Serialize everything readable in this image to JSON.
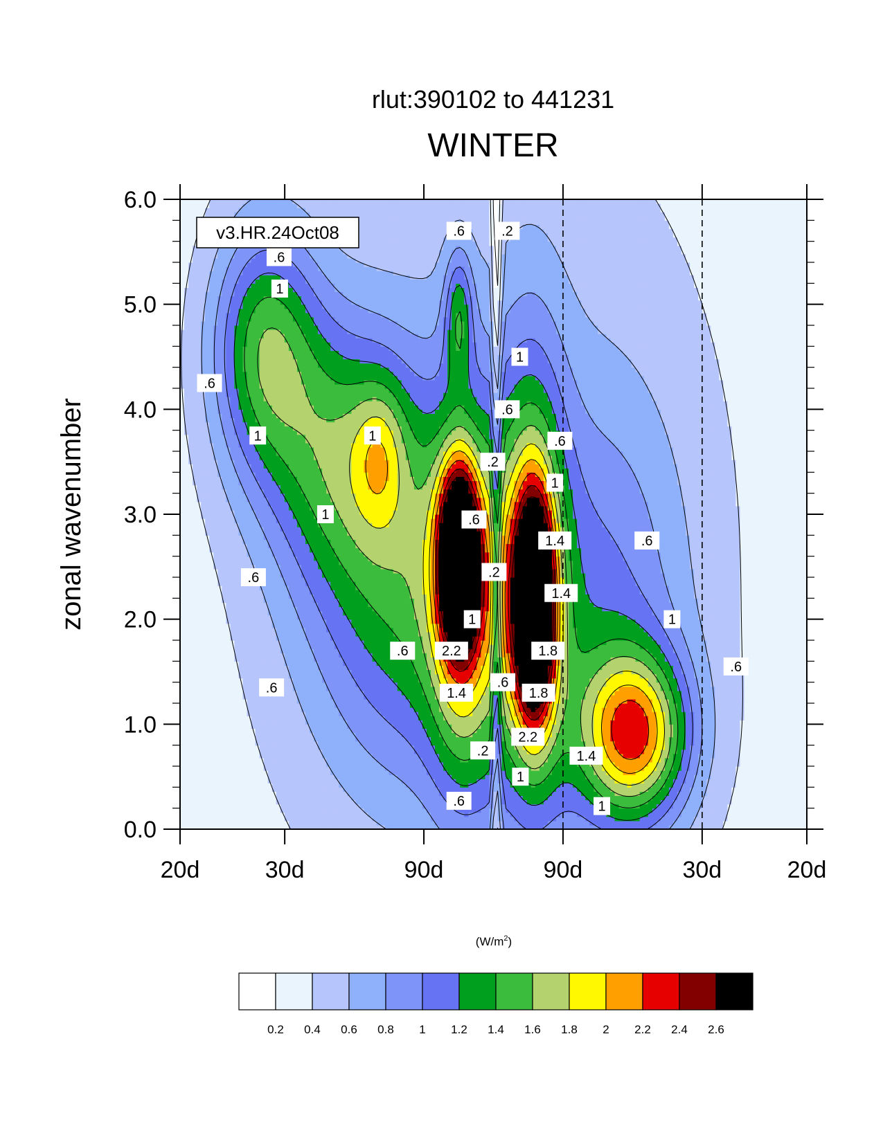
{
  "chart_data": {
    "type": "heatmap",
    "title": "WINTER",
    "subtitle": "rlut:390102 to 441231",
    "ylabel": "zonal wavenumber",
    "xlabel": "",
    "model_label": "v3.HR.24Oct08",
    "units_label": "(W/m",
    "units_sup": "2",
    "units_close": ")",
    "x_tick_labels": [
      "20d",
      "30d",
      "90d",
      "90d",
      "30d",
      "20d"
    ],
    "y_ticks": [
      0,
      1,
      2,
      3,
      4,
      5,
      6
    ],
    "y_tick_labels": [
      "0.0",
      "1.0",
      "2.0",
      "3.0",
      "4.0",
      "5.0",
      "6.0"
    ],
    "ylim": [
      0,
      6
    ],
    "x_range": [
      -0.05,
      0.05
    ],
    "x_tick_positions": [
      -0.05,
      -0.0333,
      -0.0111,
      0.0111,
      0.0333,
      0.05
    ],
    "dashed_lines_x": [
      0.0111,
      0.0333
    ],
    "levels": [
      0.2,
      0.4,
      0.6,
      0.8,
      1,
      1.2,
      1.4,
      1.6,
      1.8,
      2,
      2.2,
      2.4,
      2.6
    ],
    "level_labels": [
      "0.2",
      "0.4",
      "0.6",
      "0.8",
      "1",
      "1.2",
      "1.4",
      "1.6",
      "1.8",
      "2",
      "2.2",
      "2.4",
      "2.6"
    ],
    "colors": [
      "#ffffff",
      "#eaf4fc",
      "#b6c5fb",
      "#8fb0fb",
      "#7e94f8",
      "#6674f4",
      "#00a01e",
      "#3cbc3c",
      "#b4d26e",
      "#fff800",
      "#ffa000",
      "#e60000",
      "#820000",
      "#000000"
    ],
    "features": [
      {
        "x": -0.012,
        "y": 2.3,
        "sx": 0.012,
        "sy": 1.3,
        "amp": 0.9
      },
      {
        "x": -0.0055,
        "y": 2.6,
        "sx": 0.0022,
        "sy": 0.6,
        "amp": 2.0
      },
      {
        "x": -0.0045,
        "y": 2.0,
        "sx": 0.004,
        "sy": 1.3,
        "amp": 0.9
      },
      {
        "x": 0.0065,
        "y": 2.1,
        "sx": 0.0023,
        "sy": 0.75,
        "amp": 2.1
      },
      {
        "x": 0.006,
        "y": 2.4,
        "sx": 0.004,
        "sy": 1.6,
        "amp": 1.0
      },
      {
        "x": -0.0365,
        "y": 4.6,
        "sx": 0.006,
        "sy": 0.85,
        "amp": 1.1
      },
      {
        "x": -0.025,
        "y": 3.6,
        "sx": 0.008,
        "sy": 0.9,
        "amp": 0.8
      },
      {
        "x": -0.018,
        "y": 3.6,
        "sx": 0.003,
        "sy": 0.5,
        "amp": 0.5
      },
      {
        "x": -0.0055,
        "y": 4.9,
        "sx": 0.0016,
        "sy": 0.45,
        "amp": 0.7
      },
      {
        "x": 0.0225,
        "y": 0.9,
        "sx": 0.006,
        "sy": 0.55,
        "amp": 1.5
      },
      {
        "x": 0.0185,
        "y": 1.8,
        "sx": 0.009,
        "sy": 1.6,
        "amp": 0.55
      },
      {
        "x": 0.0,
        "y": 3.0,
        "sx": 0.03,
        "sy": 3.5,
        "amp": 0.35
      }
    ],
    "contour_labels": [
      {
        "text": ".6",
        "x": -0.0055,
        "y": 5.7
      },
      {
        "text": ".2",
        "x": 0.0022,
        "y": 5.7
      },
      {
        "text": ".6",
        "x": -0.0342,
        "y": 5.45
      },
      {
        "text": "1",
        "x": -0.0341,
        "y": 5.15
      },
      {
        "text": "1",
        "x": 0.0042,
        "y": 4.5
      },
      {
        "text": ".6",
        "x": -0.0453,
        "y": 4.25
      },
      {
        "text": ".6",
        "x": 0.0022,
        "y": 4.0
      },
      {
        "text": "1",
        "x": -0.0376,
        "y": 3.75
      },
      {
        "text": "1",
        "x": -0.0193,
        "y": 3.75
      },
      {
        "text": ".6",
        "x": 0.0106,
        "y": 3.7
      },
      {
        "text": ".2",
        "x": -0.0001,
        "y": 3.5
      },
      {
        "text": "1",
        "x": 0.0098,
        "y": 3.3
      },
      {
        "text": "1",
        "x": -0.0268,
        "y": 3.0
      },
      {
        "text": ".6",
        "x": -0.0031,
        "y": 2.95
      },
      {
        "text": ".6",
        "x": 0.0245,
        "y": 2.75
      },
      {
        "text": "1.4",
        "x": 0.0098,
        "y": 2.75
      },
      {
        "text": ".2",
        "x": 0.0001,
        "y": 2.45
      },
      {
        "text": ".6",
        "x": -0.0383,
        "y": 2.4
      },
      {
        "text": "1.4",
        "x": 0.0108,
        "y": 2.25
      },
      {
        "text": "1",
        "x": 0.0285,
        "y": 2.0
      },
      {
        "text": "1",
        "x": -0.0034,
        "y": 2.0
      },
      {
        "text": ".6",
        "x": -0.0145,
        "y": 1.7
      },
      {
        "text": "2.2",
        "x": -0.0067,
        "y": 1.7
      },
      {
        "text": "1.8",
        "x": 0.0087,
        "y": 1.7
      },
      {
        "text": ".6",
        "x": 0.0387,
        "y": 1.55
      },
      {
        "text": ".6",
        "x": -0.0354,
        "y": 1.35
      },
      {
        "text": ".6",
        "x": 0.0015,
        "y": 1.4
      },
      {
        "text": "1.4",
        "x": -0.0059,
        "y": 1.3
      },
      {
        "text": "1.8",
        "x": 0.0072,
        "y": 1.3
      },
      {
        "text": "2.2",
        "x": 0.0055,
        "y": 0.88
      },
      {
        "text": ".2",
        "x": -0.0017,
        "y": 0.75
      },
      {
        "text": "1.4",
        "x": 0.0148,
        "y": 0.7
      },
      {
        "text": "1",
        "x": 0.0043,
        "y": 0.5
      },
      {
        "text": ".6",
        "x": -0.0055,
        "y": 0.27
      },
      {
        "text": "1",
        "x": 0.0173,
        "y": 0.22
      }
    ]
  }
}
